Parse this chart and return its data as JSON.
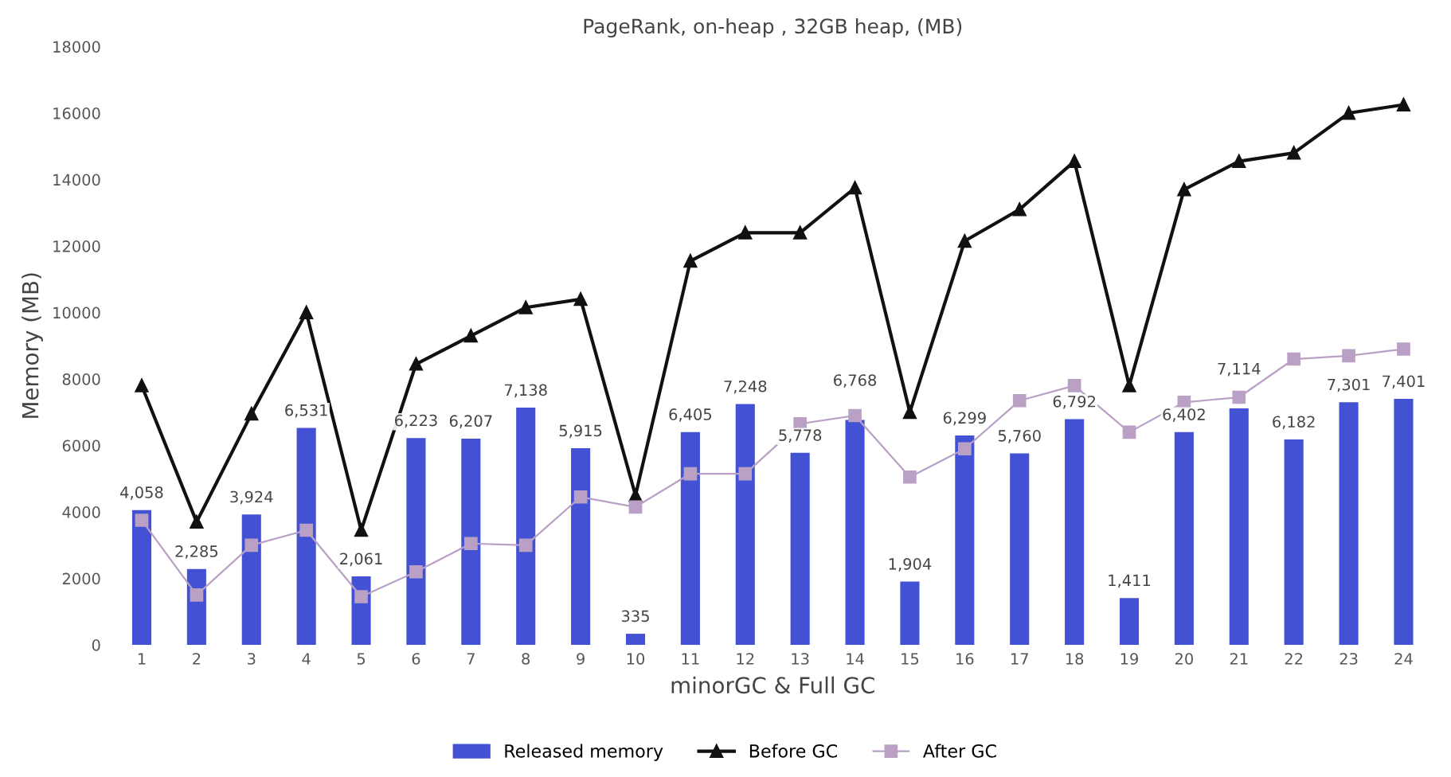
{
  "chart_data": {
    "type": "bar",
    "title": "PageRank, on-heap , 32GB heap, (MB)",
    "xlabel": "minorGC & Full GC",
    "ylabel": "Memory (MB)",
    "categories": [
      "1",
      "2",
      "3",
      "4",
      "5",
      "6",
      "7",
      "8",
      "9",
      "10",
      "11",
      "12",
      "13",
      "14",
      "15",
      "16",
      "17",
      "18",
      "19",
      "20",
      "21",
      "22",
      "23",
      "24"
    ],
    "series": [
      {
        "name": "Released memory",
        "type": "bar",
        "color": "#4352d4",
        "values": [
          4058,
          2285,
          3924,
          6531,
          2061,
          6223,
          6207,
          7138,
          5915,
          335,
          6405,
          7248,
          5778,
          6768,
          1904,
          6299,
          5760,
          6792,
          1411,
          6402,
          7114,
          6182,
          7301,
          7401
        ],
        "value_labels": [
          "4,058",
          "2,285",
          "3,924",
          "6,531",
          "2,061",
          "6,223",
          "6,207",
          "7,138",
          "5,915",
          "335",
          "6,405",
          "7,248",
          "5,778",
          "6,768",
          "1,904",
          "6,299",
          "5,760",
          "6,792",
          "1,411",
          "6,402",
          "7,114",
          "6,182",
          "7,301",
          "7,401"
        ]
      },
      {
        "name": "Before GC",
        "type": "line",
        "color": "#111111",
        "marker": "triangle",
        "values": [
          7800,
          3700,
          6950,
          10000,
          3450,
          8450,
          9300,
          10150,
          10400,
          4500,
          11550,
          12400,
          12400,
          13750,
          7000,
          12150,
          13100,
          14550,
          7800,
          13700,
          14550,
          14800,
          16000,
          16250
        ]
      },
      {
        "name": "After GC",
        "type": "line",
        "color": "#b9a0c4",
        "marker": "square",
        "values": [
          3750,
          1500,
          3000,
          3450,
          1450,
          2200,
          3050,
          3000,
          4450,
          4150,
          5150,
          5150,
          6650,
          6900,
          5050,
          5900,
          7350,
          7800,
          6400,
          7300,
          7450,
          8600,
          8700,
          8900
        ]
      }
    ],
    "ylim": [
      0,
      18000
    ],
    "yticks": [
      0,
      2000,
      4000,
      6000,
      8000,
      10000,
      12000,
      14000,
      16000,
      18000
    ],
    "grid": false,
    "legend": "bottom"
  }
}
